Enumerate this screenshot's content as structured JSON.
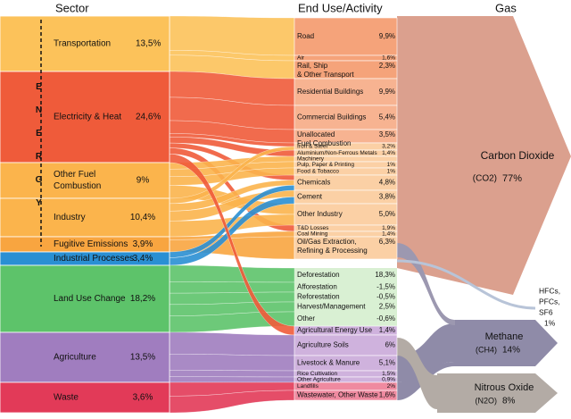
{
  "headers": {
    "sector": "Sector",
    "end_use": "End Use/Activity",
    "gas": "Gas"
  },
  "energy_label": "ENERGY",
  "sectors": [
    {
      "label": [
        "Transportation"
      ],
      "value": "13,5%"
    },
    {
      "label": [
        "Electricity & Heat"
      ],
      "value": "24,6%"
    },
    {
      "label": [
        "Other Fuel",
        "Combustion"
      ],
      "value": "9%"
    },
    {
      "label": [
        "Industry"
      ],
      "value": "10,4%"
    },
    {
      "label": [
        "Fugitive Emissions"
      ],
      "value": "3,9%"
    },
    {
      "label": [
        "Industrial Processes"
      ],
      "value": "3,4%"
    },
    {
      "label": [
        "Land Use Change"
      ],
      "value": "18,2%"
    },
    {
      "label": [
        "Agriculture"
      ],
      "value": "13,5%"
    },
    {
      "label": [
        "Waste"
      ],
      "value": "3,6%"
    }
  ],
  "end_uses": [
    {
      "label": [
        "Road"
      ],
      "value": "9,9%"
    },
    {
      "label": [
        "Air"
      ],
      "value": "1,6%"
    },
    {
      "label": [
        "Rail, Ship",
        "& Other Transport"
      ],
      "value": "2,3%"
    },
    {
      "label": [
        "Residential Buildings"
      ],
      "value": "9,9%"
    },
    {
      "label": [
        "Commercial Buildings"
      ],
      "value": "5,4%"
    },
    {
      "label": [
        "Unallocated",
        "Fuel Combustion"
      ],
      "value": "3,5%"
    },
    {
      "label": [
        "Iron & Steel"
      ],
      "value": "3,2%"
    },
    {
      "label": [
        "Aluminium/Non-Ferrous Metals"
      ],
      "value": "1,4%"
    },
    {
      "label": [
        "Machinery"
      ]
    },
    {
      "label": [
        "Pulp, Paper & Printing"
      ],
      "value": "1%"
    },
    {
      "label": [
        "Food & Tobacco"
      ],
      "value": "1%"
    },
    {
      "label": [
        "Chemicals"
      ],
      "value": "4,8%"
    },
    {
      "label": [
        "Cement"
      ],
      "value": "3,8%"
    },
    {
      "label": [
        "Other Industry"
      ],
      "value": "5,0%"
    },
    {
      "label": [
        "T&D Losses"
      ],
      "value": "1,9%"
    },
    {
      "label": [
        "Coal Mining"
      ],
      "value": "1,4%"
    },
    {
      "label": [
        "Oil/Gas Extraction,",
        "Refining & Processing"
      ],
      "value": "6,3%"
    },
    {
      "label": [
        "Deforestation"
      ],
      "value": "18,3%"
    },
    {
      "label": [
        "Afforestation"
      ],
      "value": "-1,5%"
    },
    {
      "label": [
        "Reforestation"
      ],
      "value": "-0,5%"
    },
    {
      "label": [
        "Harvest/Management"
      ],
      "value": "2,5%"
    },
    {
      "label": [
        "Other"
      ],
      "value": "-0,6%"
    },
    {
      "label": [
        "Agricultural Energy Use"
      ],
      "value": "1,4%"
    },
    {
      "label": [
        "Agriculture Soils"
      ],
      "value": "6%"
    },
    {
      "label": [
        "Livestock & Manure"
      ],
      "value": "5,1%"
    },
    {
      "label": [
        "Rice Cultivation"
      ],
      "value": "1,5%"
    },
    {
      "label": [
        "Other Agriculture"
      ],
      "value": "0,9%"
    },
    {
      "label": [
        "Landfills"
      ],
      "value": "2%"
    },
    {
      "label": [
        "Wastewater, Other Waste"
      ],
      "value": "1,6%"
    }
  ],
  "gases": [
    {
      "name": "Carbon Dioxide",
      "formula": "(CO2)",
      "value": "77%"
    },
    {
      "name": "Methane",
      "formula": "(CH4)",
      "value": "14%"
    },
    {
      "name": "Nitrous Oxide",
      "formula": "(N2O)",
      "value": "8%"
    }
  ],
  "fgases": {
    "lines": [
      "HFCs,",
      "PFCs,",
      "SF6"
    ],
    "value": "1%"
  }
}
